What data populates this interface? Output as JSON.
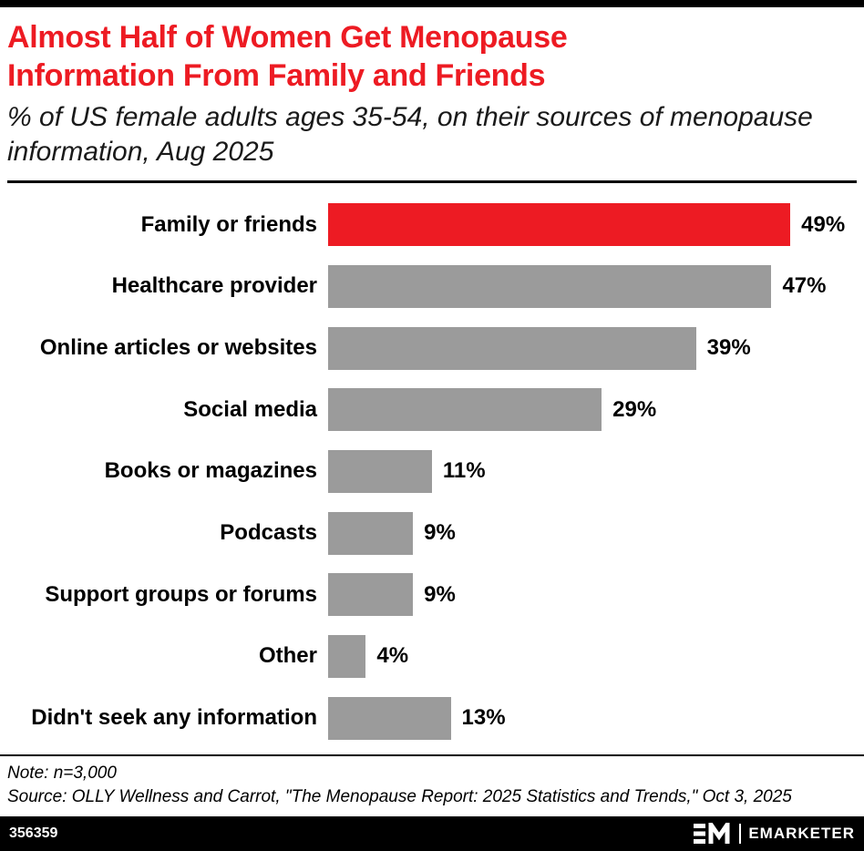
{
  "header": {
    "title": "Almost Half of Women Get Menopause Information From Family and Friends",
    "subtitle": "% of US female adults ages 35-54, on their sources of menopause information, Aug 2025"
  },
  "chart_data": {
    "type": "bar",
    "orientation": "horizontal",
    "title": "Almost Half of Women Get Menopause Information From Family and Friends",
    "subtitle": "% of US female adults ages 35-54, on their sources of menopause information, Aug 2025",
    "categories": [
      "Family or friends",
      "Healthcare provider",
      "Online articles or websites",
      "Social media",
      "Books or magazines",
      "Podcasts",
      "Support groups or forums",
      "Other",
      "Didn't seek any information"
    ],
    "values": [
      49,
      47,
      39,
      29,
      11,
      9,
      9,
      4,
      13
    ],
    "value_labels": [
      "49%",
      "47%",
      "39%",
      "29%",
      "11%",
      "9%",
      "9%",
      "4%",
      "13%"
    ],
    "highlight_index": 0,
    "bar_colors": {
      "highlight": "#ed1b23",
      "default": "#9b9b9b"
    },
    "xlim": [
      0,
      52
    ],
    "grid": false,
    "legend": "none"
  },
  "footnote": {
    "note": "Note: n=3,000",
    "source": "Source: OLLY Wellness and Carrot, \"The Menopause Report: 2025 Statistics and Trends,\" Oct 3, 2025"
  },
  "footer": {
    "chart_id": "356359",
    "brand": "EMARKETER"
  }
}
